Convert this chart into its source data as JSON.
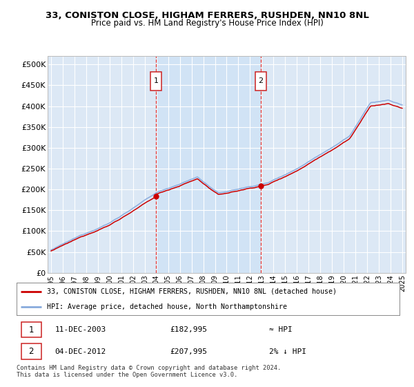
{
  "title_line1": "33, CONISTON CLOSE, HIGHAM FERRERS, RUSHDEN, NN10 8NL",
  "title_line2": "Price paid vs. HM Land Registry's House Price Index (HPI)",
  "ylabel_ticks": [
    "£0",
    "£50K",
    "£100K",
    "£150K",
    "£200K",
    "£250K",
    "£300K",
    "£350K",
    "£400K",
    "£450K",
    "£500K"
  ],
  "ytick_values": [
    0,
    50000,
    100000,
    150000,
    200000,
    250000,
    300000,
    350000,
    400000,
    450000,
    500000
  ],
  "ylim": [
    0,
    520000
  ],
  "xlim_start": 1994.7,
  "xlim_end": 2025.3,
  "background_color": "#dce8f5",
  "grid_color": "#ffffff",
  "sale1_date": 2003.95,
  "sale1_price": 182995,
  "sale2_date": 2012.92,
  "sale2_price": 207995,
  "vline_color": "#dd3333",
  "dot_color": "#cc0000",
  "legend_line1": "33, CONISTON CLOSE, HIGHAM FERRERS, RUSHDEN, NN10 8NL (detached house)",
  "legend_line2": "HPI: Average price, detached house, North Northamptonshire",
  "annot1_date": "11-DEC-2003",
  "annot1_price": "£182,995",
  "annot1_hpi": "≈ HPI",
  "annot2_date": "04-DEC-2012",
  "annot2_price": "£207,995",
  "annot2_hpi": "2% ↓ HPI",
  "footer": "Contains HM Land Registry data © Crown copyright and database right 2024.\nThis data is licensed under the Open Government Licence v3.0.",
  "price_paid_color": "#cc0000",
  "hpi_color": "#88aadd",
  "shade_color": "#ddeeff",
  "xtick_years": [
    1995,
    1996,
    1997,
    1998,
    1999,
    2000,
    2001,
    2002,
    2003,
    2004,
    2005,
    2006,
    2007,
    2008,
    2009,
    2010,
    2011,
    2012,
    2013,
    2014,
    2015,
    2016,
    2017,
    2018,
    2019,
    2020,
    2021,
    2022,
    2023,
    2024,
    2025
  ]
}
